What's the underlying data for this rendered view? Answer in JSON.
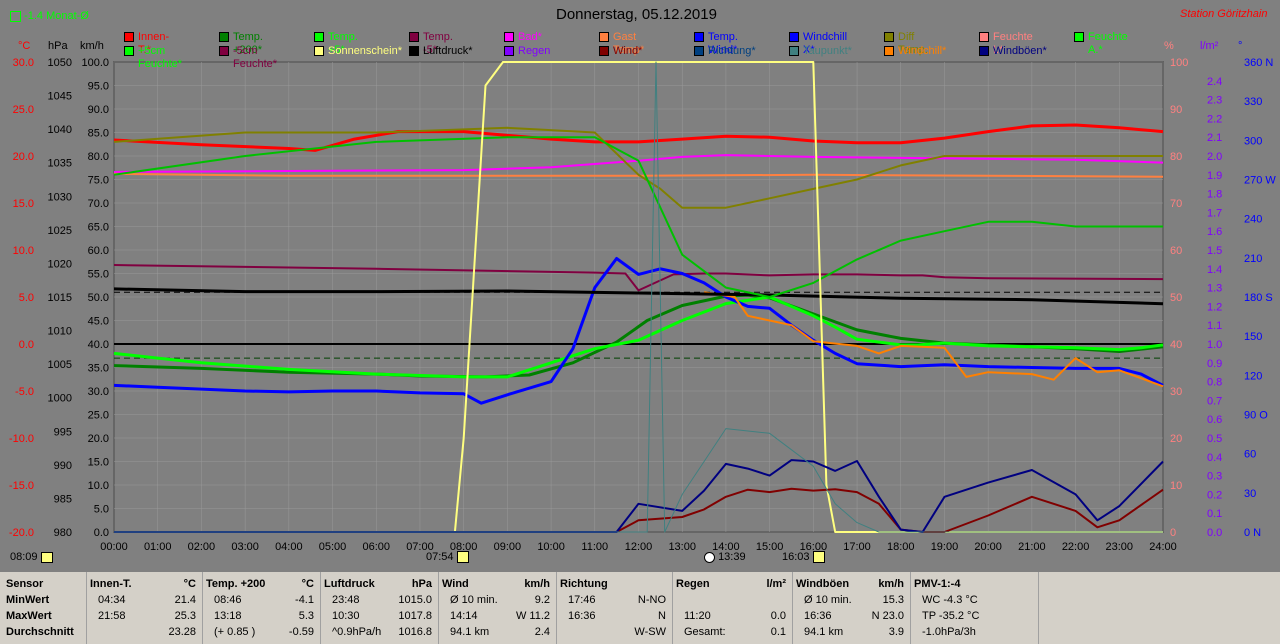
{
  "header": {
    "title": "Donnerstag, 05.12.2019",
    "station": "Station Göritzhain",
    "period": "-1.4 Monat-Ø"
  },
  "legend": [
    {
      "label": "Innen-T.*",
      "color": "#ff0000"
    },
    {
      "label": "Temp. +200*",
      "color": "#008000"
    },
    {
      "label": "Temp. +5*",
      "color": "#00ff00"
    },
    {
      "label": "Temp. -5*",
      "color": "#800040"
    },
    {
      "label": "Bad*",
      "color": "#ff00ff"
    },
    {
      "label": "Gast Temp*",
      "color": "#ff8040"
    },
    {
      "label": "Temp. Wind*",
      "color": "#0000ff"
    },
    {
      "label": "Windchill X*",
      "color": "#0000ff"
    },
    {
      "label": "Diff Temp.",
      "color": "#808000"
    },
    {
      "label": "Feuchte I.*",
      "color": "#ff8080"
    },
    {
      "label": "Feuchte A.*",
      "color": "#00ff00"
    },
    {
      "label": "+5cm Feuchte*",
      "color": "#00ff00"
    },
    {
      "label": "-5cm Feuchte*",
      "color": "#800040"
    },
    {
      "label": "Sonnenschein*",
      "color": "#ffff80"
    },
    {
      "label": "Luftdruck*",
      "color": "#000000"
    },
    {
      "label": "Regen",
      "color": "#8000ff"
    },
    {
      "label": "Wind*",
      "color": "#800000"
    },
    {
      "label": "Richtung*",
      "color": "#004080"
    },
    {
      "label": "Taupunkt*",
      "color": "#408080"
    },
    {
      "label": "Windchill*",
      "color": "#ff8000"
    },
    {
      "label": "Windböen*",
      "color": "#000080"
    }
  ],
  "axes": {
    "unit_temp": "°C",
    "unit_hpa": "hPa",
    "unit_kmh": "km/h",
    "unit_pct": "%",
    "unit_rain": "l/m²",
    "unit_deg": "°",
    "temp_ticks": [
      "30.0",
      "25.0",
      "20.0",
      "15.0",
      "10.0",
      "5.0",
      "0.0",
      "-5.0",
      "-10.0",
      "-15.0",
      "-20.0"
    ],
    "hpa_ticks": [
      "1050",
      "1045",
      "1040",
      "1035",
      "1030",
      "1025",
      "1020",
      "1015",
      "1010",
      "1005",
      "1000",
      "995",
      "990",
      "985",
      "980"
    ],
    "kmh_ticks": [
      "100.0",
      "95.0",
      "90.0",
      "85.0",
      "80.0",
      "75.0",
      "70.0",
      "65.0",
      "60.0",
      "55.0",
      "50.0",
      "45.0",
      "40.0",
      "35.0",
      "30.0",
      "25.0",
      "20.0",
      "15.0",
      "10.0",
      "5.0",
      "0.0"
    ],
    "pct_ticks": [
      "100",
      "90",
      "80",
      "70",
      "60",
      "50",
      "40",
      "30",
      "20",
      "10",
      "0"
    ],
    "rain_ticks": [
      "2.4",
      "2.3",
      "2.2",
      "2.1",
      "2.0",
      "1.9",
      "1.8",
      "1.7",
      "1.6",
      "1.5",
      "1.4",
      "1.3",
      "1.2",
      "1.1",
      "1.0",
      "0.9",
      "0.8",
      "0.7",
      "0.6",
      "0.5",
      "0.4",
      "0.3",
      "0.2",
      "0.1",
      "0.0"
    ],
    "dir_ticks": [
      "360 N",
      "330",
      "300",
      "270 W",
      "240",
      "210",
      "180 S",
      "150",
      "120",
      "90 O",
      "60",
      "30",
      "0   N"
    ],
    "time_ticks": [
      "00:00",
      "01:00",
      "02:00",
      "03:00",
      "04:00",
      "05:00",
      "06:00",
      "07:00",
      "08:00",
      "09:00",
      "10:00",
      "11:00",
      "12:00",
      "13:00",
      "14:00",
      "15:00",
      "16:00",
      "17:00",
      "18:00",
      "19:00",
      "20:00",
      "21:00",
      "22:00",
      "23:00",
      "24:00"
    ]
  },
  "sun_markers": {
    "sunrise": "07:54",
    "sunset": "16:03",
    "moon": "13:39",
    "prev_day": "08:09"
  },
  "chart_data": {
    "type": "line",
    "title": "Donnerstag, 05.12.2019",
    "x_unit": "hour",
    "xlim": [
      0,
      24
    ],
    "series": [
      {
        "name": "Innen-T.*",
        "axis": "temp",
        "color": "#ff0000",
        "x": [
          0,
          2,
          4,
          4.6,
          5.5,
          6.5,
          8,
          10,
          11,
          12,
          13,
          14,
          15,
          16,
          17,
          18,
          19,
          20,
          21,
          22,
          23,
          24
        ],
        "y": [
          21.7,
          21.2,
          20.8,
          20.6,
          21.8,
          22.6,
          22.6,
          21.8,
          21.5,
          21.5,
          21.8,
          22.1,
          22,
          21.6,
          21.4,
          21.4,
          21.9,
          22.6,
          23.2,
          23.3,
          23.0,
          22.6
        ]
      },
      {
        "name": "Temp. +200*",
        "axis": "temp",
        "color": "#008000",
        "x": [
          0,
          2,
          4,
          6,
          7,
          8.5,
          9.5,
          10.5,
          11.5,
          12.2,
          13,
          14,
          14.5,
          15,
          16,
          17,
          18,
          19,
          20,
          21,
          22,
          23,
          24
        ],
        "y": [
          -2.3,
          -2.6,
          -3.0,
          -3.2,
          -3.4,
          -3.5,
          -3.3,
          -2.0,
          0.2,
          2.5,
          4.1,
          5.1,
          5.2,
          4.9,
          3.2,
          1.5,
          0.6,
          0.1,
          -0.1,
          -0.3,
          -0.5,
          -0.8,
          -0.3
        ]
      },
      {
        "name": "Temp. +5*",
        "axis": "temp",
        "color": "#00ff00",
        "x": [
          0,
          1,
          2,
          4,
          6,
          8,
          9,
          10,
          11,
          12,
          13,
          14,
          15,
          16,
          16.5,
          17,
          18,
          18.4,
          19,
          20,
          21,
          22,
          23,
          23.5,
          24
        ],
        "y": [
          -1.0,
          -1.5,
          -2.0,
          -2.7,
          -3.2,
          -3.5,
          -3.5,
          -2.0,
          -0.5,
          0.4,
          2.5,
          4.3,
          5.0,
          3.0,
          1.8,
          0.5,
          -0.1,
          -0.1,
          0.1,
          -0.2,
          -0.3,
          -0.4,
          -0.6,
          -0.4,
          -0.1
        ]
      },
      {
        "name": "Temp. -5*",
        "axis": "temp",
        "color": "#800040",
        "x": [
          0,
          6,
          11,
          11.7,
          12,
          12.8,
          13.5,
          14,
          15,
          16,
          17,
          18,
          18.5,
          19,
          20,
          24
        ],
        "y": [
          8.4,
          8.0,
          7.6,
          7.5,
          5.7,
          7.4,
          7.5,
          7.5,
          7.3,
          7.4,
          7.4,
          7.3,
          7.3,
          7.1,
          7.0,
          6.9
        ]
      },
      {
        "name": "Bad*",
        "axis": "temp",
        "color": "#ff00ff",
        "x": [
          0,
          4,
          8,
          10,
          12,
          13,
          14,
          15,
          16,
          18,
          20,
          22,
          24
        ],
        "y": [
          18.3,
          18.4,
          18.5,
          18.8,
          19.5,
          19.9,
          20.1,
          20.0,
          19.9,
          19.8,
          19.7,
          19.6,
          19.3
        ]
      },
      {
        "name": "Gast Temp*",
        "axis": "temp",
        "color": "#ff8040",
        "x": [
          0,
          4,
          8,
          12,
          16,
          20,
          24
        ],
        "y": [
          18.1,
          17.9,
          17.9,
          17.9,
          18.0,
          17.9,
          17.8
        ]
      },
      {
        "name": "Temp. Wind*",
        "axis": "temp",
        "color": "#0000ff",
        "x": [
          0,
          1,
          2,
          3,
          4,
          5,
          6,
          7,
          8,
          8.4,
          9,
          10,
          10.5,
          11,
          11.5,
          12,
          12.5,
          13,
          13.5,
          14,
          14.5,
          15,
          15.5,
          16,
          16.5,
          17,
          18,
          19,
          20,
          21,
          22,
          23,
          23.5,
          24
        ],
        "y": [
          -4.4,
          -4.6,
          -4.8,
          -5.0,
          -5.1,
          -5.0,
          -5.0,
          -5.2,
          -5.3,
          -6.3,
          -5.4,
          -4.0,
          -0.5,
          6.0,
          9.1,
          7.4,
          8.0,
          7.5,
          6.5,
          5.0,
          4.0,
          3.8,
          2.0,
          0.4,
          -1.0,
          -2.1,
          -2.4,
          -2.2,
          -2.4,
          -2.5,
          -2.6,
          -2.6,
          -3.2,
          -4.4
        ]
      },
      {
        "name": "Windchill*",
        "axis": "temp",
        "color": "#ff8000",
        "x": [
          13.5,
          14.2,
          14.5,
          15,
          15.5,
          16,
          17,
          17.5,
          18,
          19,
          19.5,
          20,
          21,
          21.5,
          22,
          22.5,
          23,
          24
        ],
        "y": [
          5.5,
          5.0,
          3.0,
          2.5,
          2.0,
          0.3,
          -0.2,
          -1.0,
          -0.2,
          -0.4,
          -3.5,
          -3.0,
          -3.2,
          -3.8,
          -1.5,
          -3.0,
          -2.8,
          -4.5
        ]
      },
      {
        "name": "Luftdruck*",
        "axis": "hpa",
        "color": "#000000",
        "x": [
          0,
          3,
          6,
          9,
          12,
          15,
          18,
          21,
          24
        ],
        "y": [
          1016.2,
          1015.8,
          1015.8,
          1015.9,
          1015.6,
          1015.3,
          1014.8,
          1014.6,
          1014.0
        ]
      },
      {
        "name": "Diff Temp.",
        "axis": "pct",
        "color": "#808000",
        "x": [
          0,
          3,
          6,
          9,
          11,
          12,
          12.5,
          13,
          14,
          15,
          16,
          17,
          18,
          19,
          20,
          22,
          24
        ],
        "y": [
          83,
          85,
          85,
          86,
          85,
          76,
          73,
          69,
          69,
          71,
          73,
          75,
          78,
          80,
          80,
          80,
          80
        ]
      },
      {
        "name": "Feuchte A.*",
        "axis": "pct",
        "color": "#00c000",
        "x": [
          0,
          3,
          6,
          9,
          11,
          12,
          12.5,
          13,
          14,
          15,
          16,
          17,
          18,
          19,
          20,
          21,
          22,
          23,
          24
        ],
        "y": [
          76,
          80,
          83,
          84,
          84,
          79,
          69,
          59,
          52,
          50,
          53,
          58,
          62,
          64,
          66,
          66,
          65,
          65,
          65
        ]
      },
      {
        "name": "Sonnenschein*",
        "axis": "pct",
        "color": "#ffff80",
        "x": [
          0,
          7.8,
          8.0,
          8.5,
          8.9,
          9.1,
          16.0,
          16.3,
          16.5,
          24
        ],
        "y": [
          0,
          0,
          20,
          95,
          100,
          100,
          100,
          10,
          0,
          0
        ]
      },
      {
        "name": "Wind*",
        "axis": "kmh",
        "color": "#800000",
        "x": [
          0,
          11.5,
          12,
          13,
          13.5,
          14,
          14.5,
          15,
          15.5,
          16,
          16.5,
          17,
          17.5,
          18,
          18.5,
          19,
          20,
          21,
          22,
          22.5,
          23,
          24
        ],
        "y": [
          0,
          0,
          2.5,
          3.2,
          4.8,
          7.5,
          9.0,
          8.5,
          9.2,
          8.8,
          9.1,
          8.5,
          6.0,
          0.5,
          0,
          0,
          3.5,
          7.5,
          4.5,
          1.0,
          2.5,
          9.0
        ]
      },
      {
        "name": "Windböen*",
        "axis": "kmh",
        "color": "#000080",
        "x": [
          0,
          11.5,
          12,
          13,
          13.5,
          14,
          14.5,
          15,
          15.5,
          16,
          16.5,
          17,
          17.5,
          18,
          18.5,
          19,
          20,
          21,
          22,
          22.5,
          23,
          24
        ],
        "y": [
          0,
          0,
          6,
          4.5,
          8.8,
          14.5,
          13.5,
          12,
          15.3,
          15,
          13,
          15.1,
          7.5,
          0.5,
          0,
          7.5,
          10.5,
          13.2,
          8.0,
          2.5,
          5.5,
          15
        ]
      },
      {
        "name": "Taupunkt*",
        "axis": "kmh",
        "color": "#408080",
        "x": [
          0,
          11.5,
          12.2,
          12.4,
          12.6,
          13,
          13.5,
          14,
          15,
          16,
          16.5,
          17,
          17.5,
          24
        ],
        "y": [
          0,
          0,
          0,
          100,
          0,
          8,
          15,
          22,
          21,
          14,
          6,
          2,
          0,
          0
        ]
      }
    ]
  },
  "table": {
    "columns": [
      {
        "title": "Sensor",
        "unit": "",
        "rows": [
          [
            "MinWert",
            ""
          ],
          [
            "MaxWert",
            ""
          ],
          [
            "Durchschnitt",
            ""
          ]
        ]
      },
      {
        "title": "Innen-T.",
        "unit": "°C",
        "rows": [
          [
            "04:34",
            "21.4"
          ],
          [
            "21:58",
            "25.3"
          ],
          [
            "",
            "23.28"
          ]
        ]
      },
      {
        "title": "Temp. +200",
        "unit": "°C",
        "rows": [
          [
            "08:46",
            "-4.1"
          ],
          [
            "13:18",
            "5.3"
          ],
          [
            "(+ 0.85 )",
            "-0.59"
          ]
        ]
      },
      {
        "title": "Luftdruck",
        "unit": "hPa",
        "rows": [
          [
            "23:48",
            "1015.0"
          ],
          [
            "10:30",
            "1017.8"
          ],
          [
            "^0.9hPa/h",
            "1016.8"
          ]
        ]
      },
      {
        "title": "Wind",
        "unit": "km/h",
        "rows": [
          [
            "Ø 10 min.",
            "9.2"
          ],
          [
            "14:14",
            "W 11.2"
          ],
          [
            "94.1 km",
            "2.4"
          ]
        ]
      },
      {
        "title": "Richtung",
        "unit": "",
        "rows": [
          [
            "17:46",
            "N-NO"
          ],
          [
            "16:36",
            "N"
          ],
          [
            "",
            "W-SW"
          ]
        ]
      },
      {
        "title": "Regen",
        "unit": "l/m²",
        "rows": [
          [
            "",
            ""
          ],
          [
            "11:20",
            "0.0"
          ],
          [
            "Gesamt:",
            "0.1"
          ]
        ]
      },
      {
        "title": "Windböen",
        "unit": "km/h",
        "rows": [
          [
            "Ø 10 min.",
            "15.3"
          ],
          [
            "16:36",
            "N 23.0"
          ],
          [
            "94.1 km",
            "3.9"
          ]
        ]
      },
      {
        "title": "PMV-1:-4",
        "unit": "",
        "rows": [
          [
            "WC -4.3 °C",
            ""
          ],
          [
            "TP -35.2 °C",
            ""
          ],
          [
            "-1.0hPa/3h",
            ""
          ]
        ]
      }
    ]
  }
}
